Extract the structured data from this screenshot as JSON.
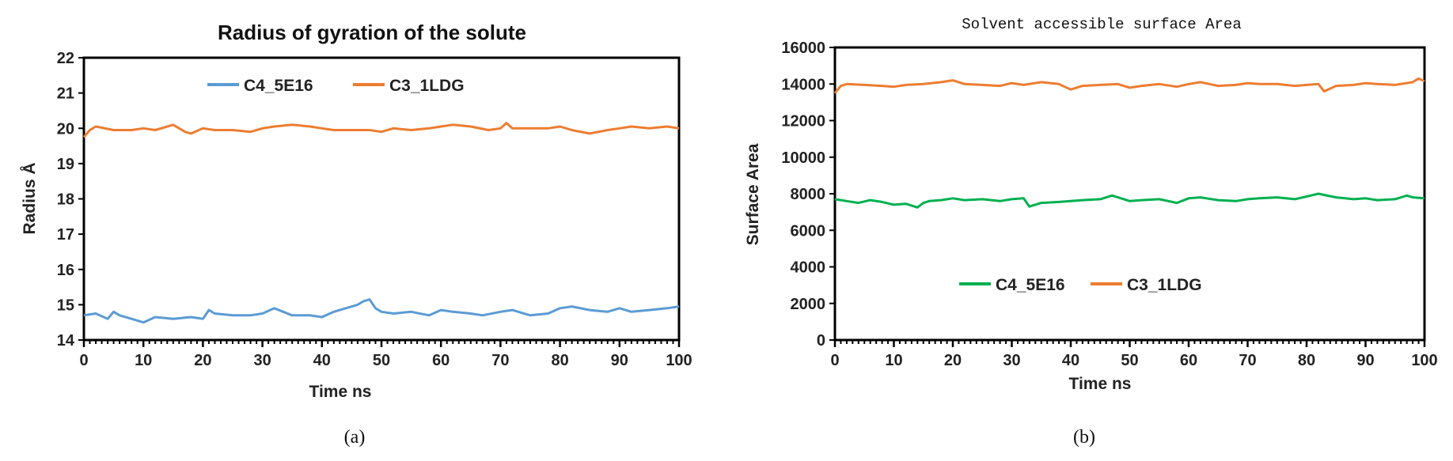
{
  "chart_data": [
    {
      "type": "line",
      "title": "Radius of gyration of the solute",
      "xlabel": "Time ns",
      "ylabel": "Radius Å",
      "xlim": [
        0,
        100
      ],
      "ylim": [
        14,
        22
      ],
      "xticks": [
        0,
        10,
        20,
        30,
        40,
        50,
        60,
        70,
        80,
        90,
        100
      ],
      "yticks": [
        14,
        15,
        16,
        17,
        18,
        19,
        20,
        21,
        22
      ],
      "legend_position": "top",
      "panel_label": "(a)",
      "series": [
        {
          "name": "C4_5E16",
          "color": "#5b9bd5",
          "x": [
            0,
            2,
            4,
            5,
            6,
            8,
            10,
            12,
            15,
            18,
            20,
            21,
            22,
            25,
            28,
            30,
            32,
            35,
            38,
            40,
            42,
            44,
            46,
            47,
            48,
            49,
            50,
            52,
            55,
            58,
            60,
            62,
            65,
            67,
            70,
            72,
            75,
            78,
            80,
            82,
            85,
            88,
            90,
            92,
            95,
            98,
            100
          ],
          "y": [
            14.7,
            14.75,
            14.6,
            14.8,
            14.7,
            14.6,
            14.5,
            14.65,
            14.6,
            14.65,
            14.6,
            14.85,
            14.75,
            14.7,
            14.7,
            14.75,
            14.9,
            14.7,
            14.7,
            14.65,
            14.8,
            14.9,
            15.0,
            15.1,
            15.15,
            14.9,
            14.8,
            14.75,
            14.8,
            14.7,
            14.85,
            14.8,
            14.75,
            14.7,
            14.8,
            14.85,
            14.7,
            14.75,
            14.9,
            14.95,
            14.85,
            14.8,
            14.9,
            14.8,
            14.85,
            14.9,
            14.95
          ]
        },
        {
          "name": "C3_1LDG",
          "color": "#ed7d31",
          "x": [
            0,
            1,
            2,
            5,
            8,
            10,
            12,
            15,
            17,
            18,
            20,
            22,
            25,
            28,
            30,
            32,
            35,
            38,
            40,
            42,
            45,
            48,
            50,
            52,
            55,
            58,
            60,
            62,
            65,
            68,
            70,
            71,
            72,
            75,
            78,
            80,
            82,
            85,
            88,
            90,
            92,
            95,
            98,
            100
          ],
          "y": [
            19.75,
            19.95,
            20.05,
            19.95,
            19.95,
            20.0,
            19.95,
            20.1,
            19.9,
            19.85,
            20.0,
            19.95,
            19.95,
            19.9,
            20.0,
            20.05,
            20.1,
            20.05,
            20.0,
            19.95,
            19.95,
            19.95,
            19.9,
            20.0,
            19.95,
            20.0,
            20.05,
            20.1,
            20.05,
            19.95,
            20.0,
            20.15,
            20.0,
            20.0,
            20.0,
            20.05,
            19.95,
            19.85,
            19.95,
            20.0,
            20.05,
            20.0,
            20.05,
            20.0
          ]
        }
      ]
    },
    {
      "type": "line",
      "title": "Solvent accessible surface Area",
      "xlabel": "Time ns",
      "ylabel": "Surface Area",
      "xlim": [
        0,
        100
      ],
      "ylim": [
        0,
        16000
      ],
      "xticks": [
        0,
        10,
        20,
        30,
        40,
        50,
        60,
        70,
        80,
        90,
        100
      ],
      "yticks": [
        0,
        2000,
        4000,
        6000,
        8000,
        10000,
        12000,
        14000,
        16000
      ],
      "legend_position": "lower-center",
      "panel_label": "(b)",
      "series": [
        {
          "name": "C4_5E16",
          "color": "#00b050",
          "x": [
            0,
            2,
            4,
            6,
            8,
            10,
            12,
            14,
            15,
            16,
            18,
            20,
            22,
            25,
            28,
            30,
            32,
            33,
            35,
            38,
            40,
            42,
            45,
            47,
            48,
            50,
            52,
            55,
            58,
            60,
            62,
            65,
            68,
            70,
            72,
            75,
            78,
            80,
            82,
            85,
            88,
            90,
            92,
            95,
            97,
            98,
            100
          ],
          "y": [
            7700,
            7600,
            7500,
            7650,
            7550,
            7400,
            7450,
            7250,
            7500,
            7600,
            7650,
            7750,
            7650,
            7700,
            7600,
            7700,
            7750,
            7300,
            7500,
            7550,
            7600,
            7650,
            7700,
            7900,
            7800,
            7600,
            7650,
            7700,
            7500,
            7750,
            7800,
            7650,
            7600,
            7700,
            7750,
            7800,
            7700,
            7850,
            8000,
            7800,
            7700,
            7750,
            7650,
            7700,
            7900,
            7800,
            7750
          ]
        },
        {
          "name": "C3_1LDG",
          "color": "#ed7d31",
          "x": [
            0,
            1,
            2,
            5,
            8,
            10,
            12,
            15,
            18,
            20,
            22,
            25,
            28,
            30,
            32,
            35,
            38,
            40,
            42,
            45,
            48,
            50,
            52,
            55,
            58,
            60,
            62,
            65,
            68,
            70,
            72,
            75,
            78,
            80,
            82,
            83,
            85,
            88,
            90,
            92,
            95,
            98,
            99,
            100
          ],
          "y": [
            13500,
            13900,
            14000,
            13950,
            13900,
            13850,
            13950,
            14000,
            14100,
            14200,
            14000,
            13950,
            13900,
            14050,
            13950,
            14100,
            14000,
            13700,
            13900,
            13950,
            14000,
            13800,
            13900,
            14000,
            13850,
            14000,
            14100,
            13900,
            13950,
            14050,
            14000,
            14000,
            13900,
            13950,
            14000,
            13600,
            13900,
            13950,
            14050,
            14000,
            13950,
            14100,
            14300,
            14150
          ]
        }
      ]
    }
  ]
}
